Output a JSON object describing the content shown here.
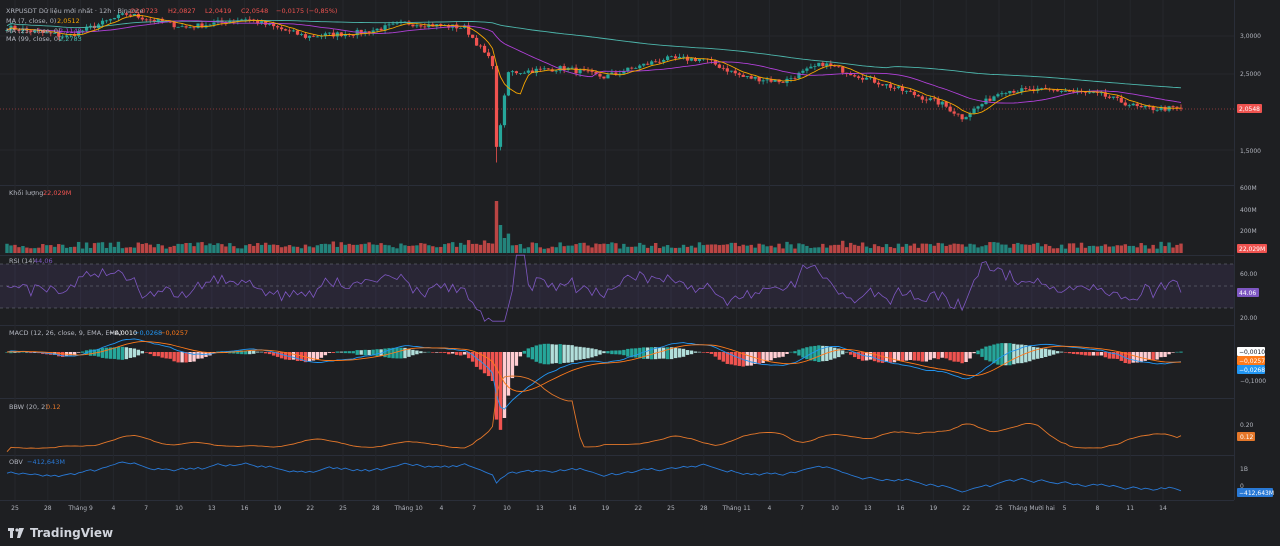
{
  "header": {
    "symbol": "XRPUSDT Dữ liệu mới nhất · 12h · Binance",
    "ohlc": {
      "o": "O2,0723",
      "h": "H2,0827",
      "l": "L2,0419",
      "c": "C2,0548",
      "chg": "−0,0175 (−0,85%)"
    },
    "ma7": {
      "label": "MA (7, close, 0)",
      "value": "2,0512"
    },
    "ma25": {
      "label": "MA (25, close, 0)",
      "value": "2,1143"
    },
    "ma99": {
      "label": "MA (99, close, 0)",
      "value": "2,2783"
    }
  },
  "volume": {
    "label": "Khối lượng",
    "value": "22,029M",
    "ticks": [
      "600M",
      "400M",
      "200M"
    ]
  },
  "rsi": {
    "label": "RSI (14)",
    "value": "44,06",
    "ticks": [
      "60.00",
      "20.00"
    ],
    "badge": "44.06"
  },
  "macd": {
    "label": "MACD (12, 26, close, 9, EMA, EMA)",
    "v1": "−0,0010",
    "v2": "−0,0268",
    "v3": "−0,0257",
    "ticks": [
      "−0,1000"
    ],
    "badges": [
      "−0,0010",
      "−0,0257",
      "−0,0268"
    ]
  },
  "bbw": {
    "label": "BBW (20, 2)",
    "value": "0.12",
    "ticks": [
      "0.20"
    ],
    "badge": "0.12"
  },
  "obv": {
    "label": "OBV",
    "value": "−412,643M",
    "ticks": [
      "1B",
      "0"
    ],
    "badge": "−412,643M"
  },
  "price_badge": "2,0548",
  "volume_badge": "22,029M",
  "brand": "TradingView",
  "colors": {
    "up": "#26a69a",
    "down": "#ef5350",
    "ma7": "#f7a600",
    "ma25": "#b040d8",
    "ma99": "#4db6ac",
    "rsi": "#7e57c2",
    "macd": "#2196f3",
    "signal": "#ff7a1a",
    "bbw": "#e4772a",
    "obv": "#2979d6"
  },
  "chart_data": {
    "type": "candlestick",
    "panes": [
      "price",
      "volume",
      "rsi",
      "macd",
      "bbw",
      "obv"
    ],
    "price_axis_ticks": [
      "3,0000",
      "2,5000",
      "1,5000"
    ],
    "x_ticks": [
      "25",
      "28",
      "Tháng 9",
      "4",
      "7",
      "10",
      "13",
      "16",
      "19",
      "22",
      "25",
      "28",
      "Tháng 10",
      "4",
      "7",
      "10",
      "13",
      "16",
      "19",
      "22",
      "25",
      "28",
      "Tháng 11",
      "4",
      "7",
      "10",
      "13",
      "16",
      "19",
      "22",
      "25",
      "Tháng Mười hai",
      "5",
      "8",
      "11",
      "14"
    ],
    "last_close": 2.0548,
    "ma7_last": 2.0512,
    "ma25_last": 2.1143,
    "ma99_last": 2.2783,
    "volume_last_m": 22.029,
    "rsi_last": 44.06,
    "macd_last": -0.001,
    "macd_line_last": -0.0268,
    "signal_last": -0.0257,
    "bbw_last": 0.12,
    "obv_last_m": -412.643,
    "price_anchors": [
      [
        0,
        2.95
      ],
      [
        15,
        2.85
      ],
      [
        30,
        3.1
      ],
      [
        45,
        2.95
      ],
      [
        60,
        3.05
      ],
      [
        75,
        2.85
      ],
      [
        90,
        2.9
      ],
      [
        100,
        3.0
      ],
      [
        115,
        2.95
      ],
      [
        122,
        2.55
      ],
      [
        123,
        1.6
      ],
      [
        126,
        2.45
      ],
      [
        140,
        2.5
      ],
      [
        150,
        2.4
      ],
      [
        165,
        2.6
      ],
      [
        175,
        2.6
      ],
      [
        185,
        2.4
      ],
      [
        195,
        2.35
      ],
      [
        205,
        2.55
      ],
      [
        215,
        2.4
      ],
      [
        225,
        2.25
      ],
      [
        235,
        2.1
      ],
      [
        240,
        1.95
      ],
      [
        250,
        2.25
      ],
      [
        265,
        2.25
      ],
      [
        275,
        2.2
      ],
      [
        285,
        2.05
      ],
      [
        295,
        2.05
      ]
    ]
  }
}
